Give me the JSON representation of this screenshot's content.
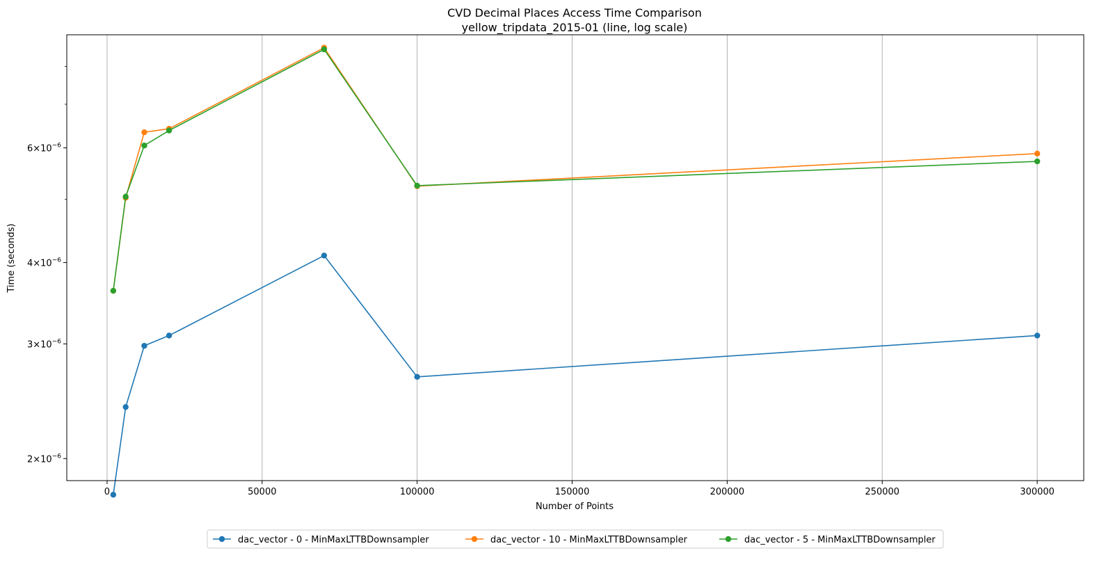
{
  "chart_data": {
    "type": "line",
    "title": "CVD Decimal Places Access Time Comparison",
    "subtitle": "yellow_tripdata_2015-01 (line, log scale)",
    "xlabel": "Number of Points",
    "ylabel": "Time (seconds)",
    "yscale": "log",
    "xlim": [
      -13000,
      315000
    ],
    "ylim": [
      1.85e-06,
      8.95e-06
    ],
    "x_ticks": [
      0,
      50000,
      100000,
      150000,
      200000,
      250000,
      300000
    ],
    "x_tick_labels": [
      "0",
      "50000",
      "100000",
      "150000",
      "200000",
      "250000",
      "300000"
    ],
    "y_major_ticks": [
      2e-06,
      3e-06,
      4e-06,
      6e-06
    ],
    "y_tick_labels": [
      {
        "base": "2",
        "exp": "−6"
      },
      {
        "base": "3",
        "exp": "−6"
      },
      {
        "base": "4",
        "exp": "−6"
      },
      {
        "base": "6",
        "exp": "−6"
      }
    ],
    "y_minor_ticks": [
      5e-06,
      7e-06,
      8e-06,
      9e-06
    ],
    "grid": "x-major",
    "legend_position": "bottom-center",
    "x": [
      2000,
      6000,
      12000,
      20000,
      70000,
      100000,
      300000
    ],
    "series": [
      {
        "name": "dac_vector - 0 - MinMaxLTTBDownsampler",
        "color": "#1f77b4",
        "values": [
          1.76e-06,
          2.4e-06,
          2.98e-06,
          3.09e-06,
          4.1e-06,
          2.67e-06,
          3.09e-06
        ]
      },
      {
        "name": "dac_vector - 10 - MinMaxLTTBDownsampler",
        "color": "#ff7f0e",
        "values": [
          3.62e-06,
          5.03e-06,
          6.34e-06,
          6.42e-06,
          8.55e-06,
          5.24e-06,
          5.88e-06
        ]
      },
      {
        "name": "dac_vector - 5 - MinMaxLTTBDownsampler",
        "color": "#2ca02c",
        "values": [
          3.62e-06,
          5.05e-06,
          6.05e-06,
          6.38e-06,
          8.5e-06,
          5.25e-06,
          5.72e-06
        ]
      }
    ]
  }
}
